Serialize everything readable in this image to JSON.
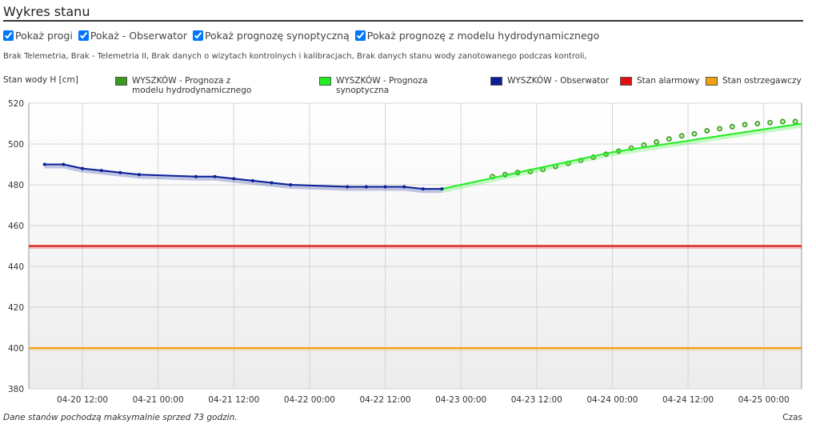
{
  "header": {
    "title": "Wykres stanu"
  },
  "options": [
    {
      "label": "Pokaż progi",
      "checked": true
    },
    {
      "label": "Pokaż - Obserwator",
      "checked": true
    },
    {
      "label": "Pokaż prognozę synoptyczną",
      "checked": true
    },
    {
      "label": "Pokaż prognozę z modelu hydrodynamicznego",
      "checked": true
    }
  ],
  "info": "Brak Telemetria, Brak - Telemetria II, Brak danych o wizytach kontrolnych i kalibracjach, Brak danych stanu wody zanotowanego podczas kontroli,",
  "chart_data": {
    "type": "line",
    "ylabel": "Stan wody H [cm]",
    "xlabel": "Czas",
    "footnote": "Dane stanów pochodzą maksymalnie sprzed 73 godzin.",
    "xlim": [
      "04-20 03:30",
      "04-25 06:00"
    ],
    "xticks": [
      "04-20 12:00",
      "04-21 00:00",
      "04-21 12:00",
      "04-22 00:00",
      "04-22 12:00",
      "04-23 00:00",
      "04-23 12:00",
      "04-24 00:00",
      "04-24 12:00",
      "04-25 00:00"
    ],
    "ylim": [
      380,
      520
    ],
    "yticks": [
      380,
      400,
      420,
      440,
      460,
      480,
      500,
      520
    ],
    "grid": true,
    "series": [
      {
        "name": "WYSZKÓW - Prognoza z modelu hydrodynamicznego",
        "color": "#3a9a1e",
        "style": "markers",
        "x": [
          "04-23 05:00",
          "04-23 07:00",
          "04-23 09:00",
          "04-23 11:00",
          "04-23 13:00",
          "04-23 15:00",
          "04-23 17:00",
          "04-23 19:00",
          "04-23 21:00",
          "04-23 23:00",
          "04-24 01:00",
          "04-24 03:00",
          "04-24 05:00",
          "04-24 07:00",
          "04-24 09:00",
          "04-24 11:00",
          "04-24 13:00",
          "04-24 15:00",
          "04-24 17:00",
          "04-24 19:00",
          "04-24 21:00",
          "04-24 23:00",
          "04-25 01:00",
          "04-25 03:00",
          "04-25 05:00"
        ],
        "values": [
          484,
          485,
          486,
          486.5,
          487.5,
          489,
          490.5,
          492,
          493.5,
          495,
          496.5,
          498,
          499.5,
          501,
          502.5,
          504,
          505,
          506.5,
          507.5,
          508.5,
          509.5,
          510,
          510.5,
          511,
          511
        ]
      },
      {
        "name": "WYSZKÓW - Prognoza synoptyczna",
        "color": "#22ee22",
        "style": "line",
        "x": [
          "04-22 21:00",
          "04-23 06:00",
          "04-24 00:00",
          "04-25 06:00"
        ],
        "values": [
          478,
          484,
          496,
          510
        ]
      },
      {
        "name": "WYSZKÓW - Obserwator",
        "color": "#0a1f96",
        "style": "line-markers",
        "x": [
          "04-20 06:00",
          "04-20 09:00",
          "04-20 12:00",
          "04-20 15:00",
          "04-20 18:00",
          "04-20 21:00",
          "04-21 06:00",
          "04-21 09:00",
          "04-21 12:00",
          "04-21 15:00",
          "04-21 18:00",
          "04-21 21:00",
          "04-22 06:00",
          "04-22 09:00",
          "04-22 12:00",
          "04-22 15:00",
          "04-22 18:00",
          "04-22 21:00"
        ],
        "values": [
          490,
          490,
          488,
          487,
          486,
          485,
          484,
          484,
          483,
          482,
          481,
          480,
          479,
          479,
          479,
          479,
          478,
          478
        ]
      },
      {
        "name": "Stan alarmowy",
        "color": "#e01010",
        "style": "level",
        "level": 450
      },
      {
        "name": "Stan ostrzegawczy",
        "color": "#f0a010",
        "style": "level",
        "level": 400
      }
    ]
  }
}
